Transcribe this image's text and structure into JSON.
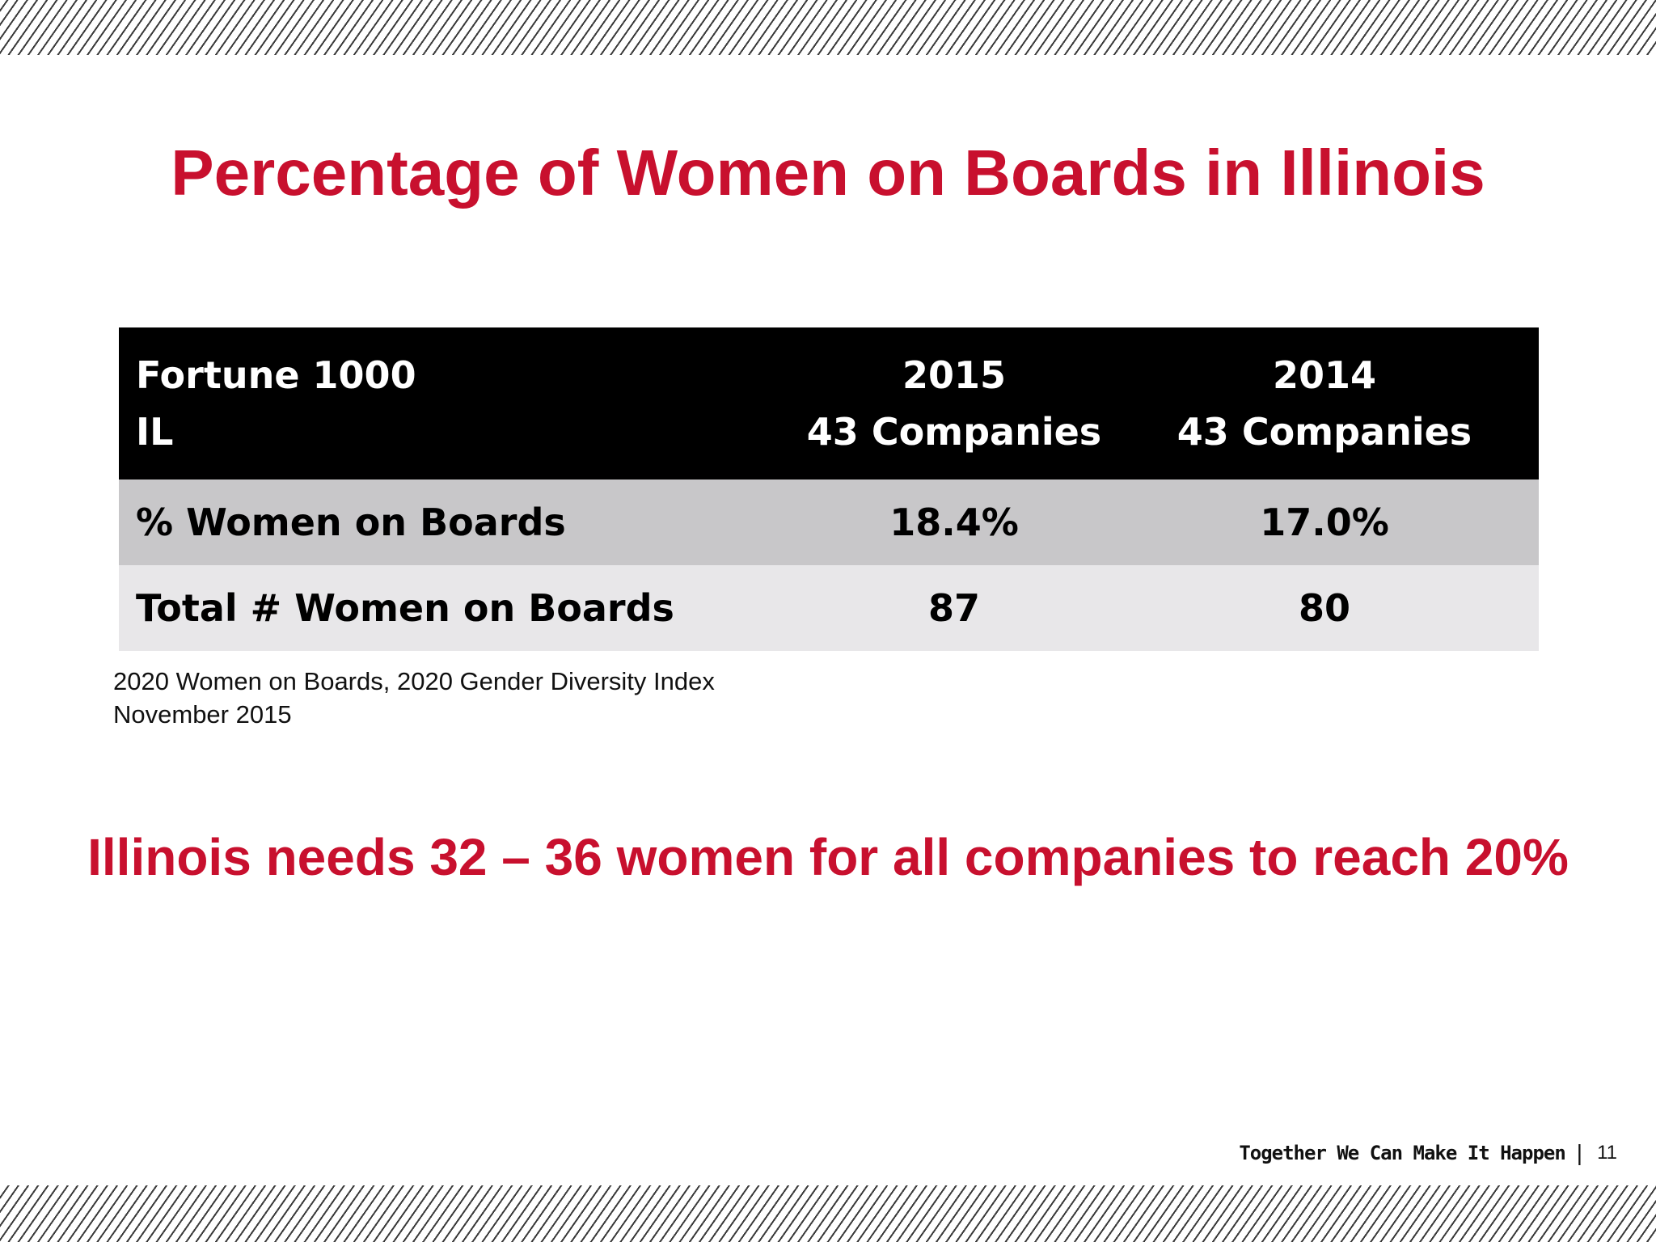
{
  "slide": {
    "title": "Percentage of Women on Boards in Illinois",
    "colors": {
      "accent": "#c8102e",
      "table_header_bg": "#000000",
      "row_1_bg": "#c8c7c9",
      "row_2_bg": "#e8e7e9"
    }
  },
  "table": {
    "header": {
      "label_line1": "Fortune 1000",
      "label_line2": "IL",
      "col1_line1": "2015",
      "col1_line2": "43 Companies",
      "col2_line1": "2014",
      "col2_line2": "43 Companies"
    },
    "rows": [
      {
        "label": "% Women on Boards",
        "v2015": "18.4%",
        "v2014": "17.0%"
      },
      {
        "label": "Total # Women on Boards",
        "v2015": "87",
        "v2014": "80"
      }
    ]
  },
  "source": {
    "line1": "2020 Women on Boards, 2020 Gender Diversity Index",
    "line2": "November 2015"
  },
  "callout": "Illinois needs 32 – 36 women for all companies to reach 20%",
  "footer": {
    "tagline": "Together We Can Make It Happen",
    "separator": "|",
    "page_number": "11"
  }
}
